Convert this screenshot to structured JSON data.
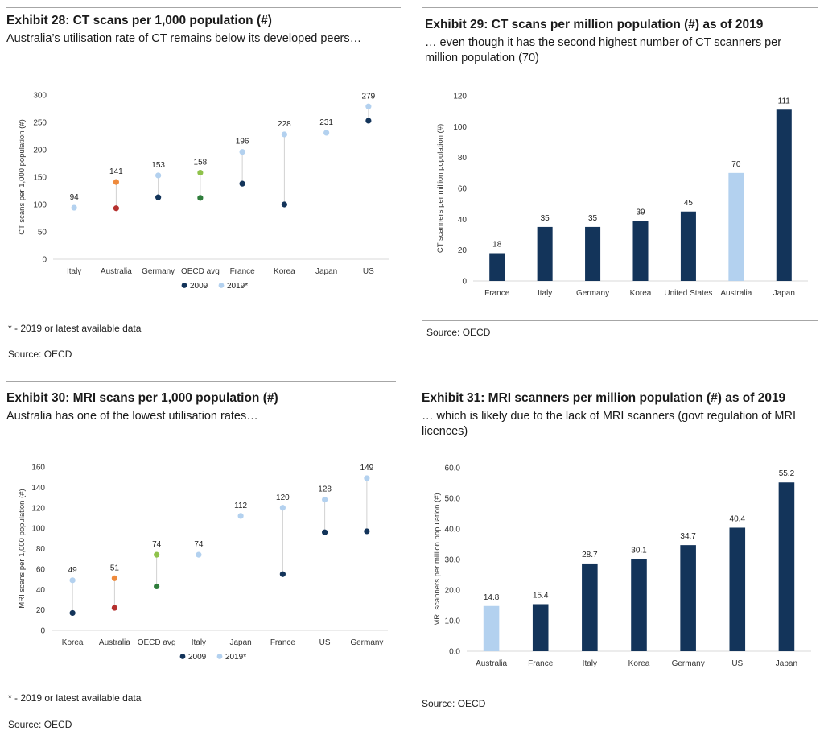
{
  "panels": {
    "p1": {
      "title": "Exhibit 28: CT scans per 1,000 population (#)",
      "subtitle": "Australia’s utilisation rate of CT remains below its developed peers…",
      "footnote": "* - 2019 or latest available data",
      "source": "Source: OECD"
    },
    "p2": {
      "title": "Exhibit 29: CT scans per million population (#) as of 2019",
      "subtitle": "… even though it has the second highest number of CT scanners per million population (70)",
      "source": "Source: OECD"
    },
    "p3": {
      "title": "Exhibit 30: MRI scans per 1,000 population (#)",
      "subtitle": "Australia has one of the lowest utilisation rates…",
      "footnote": "* - 2019 or latest available data",
      "source": "Source: OECD"
    },
    "p4": {
      "title": "Exhibit 31: MRI scanners per million population (#) as of 2019",
      "subtitle": "… which is likely due to the lack of MRI scanners (govt regulation of MRI licences)",
      "source": "Source: OECD"
    }
  },
  "colors": {
    "navy": "#13345a",
    "light_blue": "#b3d1ef",
    "orange": "#ee8a3c",
    "red": "#b5302e",
    "light_green": "#8fc24b",
    "green": "#2f7d3b",
    "connector": "#d0d0d0",
    "axis_text": "#333333"
  },
  "chart_data": [
    {
      "type": "dumbbell",
      "title": "Exhibit 28: CT scans per 1,000 population (#)",
      "ylabel": "CT scans per 1,000 population (#)",
      "ylim": [
        0,
        300
      ],
      "yticks": [
        0,
        50,
        100,
        150,
        200,
        250,
        300
      ],
      "categories": [
        "Italy",
        "Australia",
        "Germany",
        "OECD avg",
        "France",
        "Korea",
        "Japan",
        "US"
      ],
      "series": [
        {
          "name": "2009",
          "values": [
            null,
            93,
            113,
            112,
            138,
            100,
            null,
            253
          ]
        },
        {
          "name": "2019*",
          "values": [
            94,
            141,
            153,
            158,
            196,
            228,
            231,
            279
          ]
        }
      ],
      "labels": [
        94,
        141,
        153,
        158,
        196,
        228,
        231,
        279
      ],
      "highlight": {
        "Australia": [
          "red",
          "orange"
        ],
        "OECD avg": [
          "green",
          "light_green"
        ]
      },
      "legend": "bottom"
    },
    {
      "type": "bar",
      "title": "Exhibit 29: CT scans per million population (#) as of 2019",
      "ylabel": "CT scanners per million population (#)",
      "ylim": [
        0,
        120
      ],
      "yticks": [
        0,
        20,
        40,
        60,
        80,
        100,
        120
      ],
      "categories": [
        "France",
        "Italy",
        "Germany",
        "Korea",
        "United States",
        "Australia",
        "Japan"
      ],
      "values": [
        18,
        35,
        35,
        39,
        45,
        70,
        111
      ],
      "labels": [
        "18",
        "35",
        "35",
        "39",
        "45",
        "70",
        "111"
      ],
      "highlight": "Australia"
    },
    {
      "type": "dumbbell",
      "title": "Exhibit 30: MRI scans per 1,000 population (#)",
      "ylabel": "MRI scans per 1,000 population (#)",
      "ylim": [
        0,
        160
      ],
      "yticks": [
        0,
        20,
        40,
        60,
        80,
        100,
        120,
        140,
        160
      ],
      "categories": [
        "Korea",
        "Australia",
        "OECD avg",
        "Italy",
        "Japan",
        "France",
        "US",
        "Germany"
      ],
      "series": [
        {
          "name": "2009",
          "values": [
            17,
            22,
            43,
            null,
            null,
            55,
            96,
            97
          ]
        },
        {
          "name": "2019*",
          "values": [
            49,
            51,
            74,
            74,
            112,
            120,
            128,
            149
          ]
        }
      ],
      "labels": [
        49,
        51,
        74,
        74,
        112,
        120,
        128,
        149
      ],
      "highlight": {
        "Australia": [
          "red",
          "orange"
        ],
        "OECD avg": [
          "green",
          "light_green"
        ]
      },
      "legend": "bottom"
    },
    {
      "type": "bar",
      "title": "Exhibit 31: MRI scanners per million population (#) as of 2019",
      "ylabel": "MRI scanners per million population (#)",
      "ylim": [
        0,
        60
      ],
      "yticks": [
        "0.0",
        "10.0",
        "20.0",
        "30.0",
        "40.0",
        "50.0",
        "60.0"
      ],
      "categories": [
        "Australia",
        "France",
        "Italy",
        "Korea",
        "Germany",
        "US",
        "Japan"
      ],
      "values": [
        14.8,
        15.4,
        28.7,
        30.1,
        34.7,
        40.4,
        55.2
      ],
      "labels": [
        "14.8",
        "15.4",
        "28.7",
        "30.1",
        "34.7",
        "40.4",
        "55.2"
      ],
      "highlight": "Australia"
    }
  ]
}
